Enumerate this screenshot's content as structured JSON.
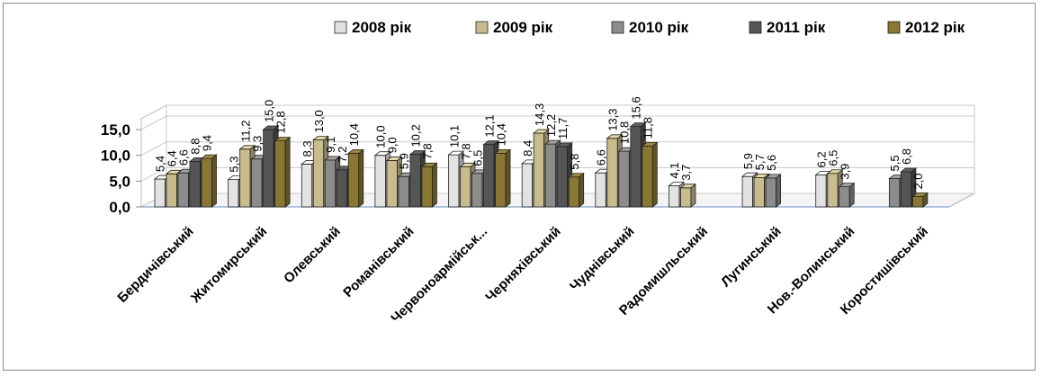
{
  "chart_data": {
    "type": "bar",
    "subtype": "3d-clustered-column",
    "title": "",
    "xlabel": "",
    "ylabel": "",
    "ylim": [
      0,
      15
    ],
    "yticks": [
      "0,0",
      "5,0",
      "10,0",
      "15,0"
    ],
    "grid": true,
    "legend_position": "top-right",
    "categories": [
      "Бердичівський",
      "Житомирський",
      "Олевський",
      "Романівський",
      "Червоноармійськ...",
      "Черняхівський",
      "Чуднівський",
      "Радомишльський",
      "Лугинський",
      "Нов.-Волинський",
      "Коростишівський"
    ],
    "series": [
      {
        "name": "2008 рік",
        "color": "#e2e2e2",
        "values": [
          5.4,
          5.3,
          8.3,
          10.0,
          10.1,
          8.4,
          6.6,
          4.1,
          5.9,
          6.2,
          null
        ],
        "labels": [
          "5,4",
          "5,3",
          "8,3",
          "10,0",
          "10,1",
          "8,4",
          "6,6",
          "4,1",
          "5,9",
          "6,2",
          ""
        ]
      },
      {
        "name": "2009 рік",
        "color": "#c8bc8c",
        "values": [
          6.4,
          11.2,
          13.0,
          9.0,
          7.8,
          14.3,
          13.3,
          3.7,
          5.7,
          6.5,
          null
        ],
        "labels": [
          "6,4",
          "11,2",
          "13,0",
          "9,0",
          "7,8",
          "14,3",
          "13,3",
          "3,7",
          "5,7",
          "6,5",
          ""
        ]
      },
      {
        "name": "2010 рік",
        "color": "#8c8c8c",
        "values": [
          6.6,
          9.3,
          9.1,
          5.9,
          6.5,
          12.2,
          10.8,
          null,
          5.6,
          3.9,
          5.5
        ],
        "labels": [
          "6,6",
          "9,3",
          "9,1",
          "5,9",
          "6,5",
          "12,2",
          "10,8",
          "",
          "5,6",
          "3,9",
          "5,5"
        ]
      },
      {
        "name": "2011 рік",
        "color": "#555555",
        "values": [
          8.8,
          15.0,
          7.2,
          10.2,
          12.1,
          11.7,
          15.6,
          null,
          null,
          null,
          6.8
        ],
        "labels": [
          "8,8",
          "15,0",
          "7,2",
          "10,2",
          "12,1",
          "11,7",
          "15,6",
          "",
          "",
          "",
          "6,8"
        ]
      },
      {
        "name": "2012 рік",
        "color": "#8a7733",
        "values": [
          9.4,
          12.8,
          10.4,
          7.8,
          10.4,
          5.8,
          11.8,
          null,
          null,
          null,
          2.0
        ],
        "labels": [
          "9,4",
          "12,8",
          "10,4",
          "7,8",
          "10,4",
          "5,8",
          "11,8",
          "",
          "",
          "",
          "2,0"
        ]
      }
    ]
  }
}
